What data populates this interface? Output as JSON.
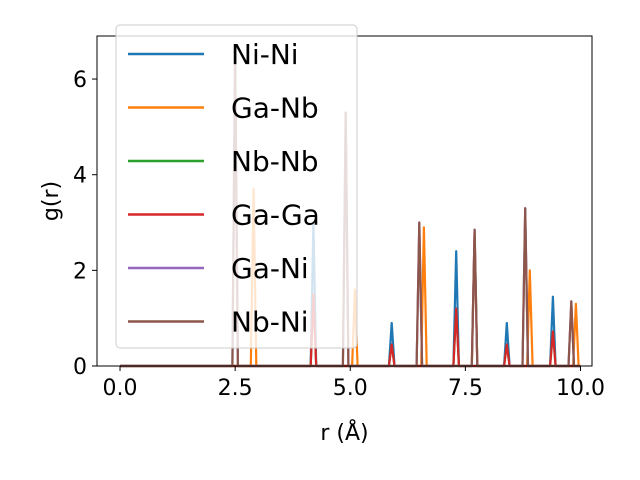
{
  "chart_data": {
    "type": "line",
    "xlabel": "r (Å)",
    "ylabel": "g(r)",
    "xlim": [
      -0.5,
      10.25
    ],
    "ylim": [
      0,
      6.9
    ],
    "xticks": [
      0.0,
      2.5,
      5.0,
      7.5,
      10.0
    ],
    "xtick_labels": [
      "0.0",
      "2.5",
      "5.0",
      "7.5",
      "10.0"
    ],
    "yticks": [
      0,
      2,
      4,
      6
    ],
    "ytick_labels": [
      "0",
      "2",
      "4",
      "6"
    ],
    "grid": false,
    "legend_position": "top-left",
    "peak_width": 0.06,
    "series": [
      {
        "name": "Ni-Ni",
        "color": "#1f77b4",
        "peaks": [
          [
            4.2,
            3.0
          ],
          [
            5.9,
            0.9
          ],
          [
            7.3,
            2.4
          ],
          [
            8.4,
            0.9
          ],
          [
            9.4,
            1.45
          ]
        ]
      },
      {
        "name": "Ga-Nb",
        "color": "#ff7f0e",
        "peaks": [
          [
            2.9,
            3.7
          ],
          [
            5.1,
            1.6
          ],
          [
            6.6,
            2.9
          ],
          [
            7.7,
            2.8
          ],
          [
            8.9,
            2.0
          ],
          [
            9.9,
            1.3
          ]
        ]
      },
      {
        "name": "Nb-Nb",
        "color": "#2ca02c",
        "peaks": [
          [
            4.2,
            1.5
          ],
          [
            5.9,
            0.45
          ],
          [
            7.3,
            1.2
          ],
          [
            8.4,
            0.45
          ],
          [
            9.4,
            0.72
          ]
        ]
      },
      {
        "name": "Ga-Ga",
        "color": "#d62728",
        "peaks": [
          [
            4.2,
            1.5
          ],
          [
            5.9,
            0.45
          ],
          [
            7.3,
            1.2
          ],
          [
            8.4,
            0.45
          ],
          [
            9.4,
            0.72
          ]
        ]
      },
      {
        "name": "Ga-Ni",
        "color": "#9467bd",
        "peaks": [
          [
            2.5,
            6.5
          ],
          [
            4.9,
            5.3
          ],
          [
            6.5,
            3.0
          ],
          [
            7.7,
            2.85
          ],
          [
            8.8,
            3.3
          ],
          [
            9.8,
            1.35
          ]
        ]
      },
      {
        "name": "Nb-Ni",
        "color": "#8c564b",
        "peaks": [
          [
            2.5,
            6.5
          ],
          [
            4.9,
            5.3
          ],
          [
            6.5,
            3.0
          ],
          [
            7.7,
            2.85
          ],
          [
            8.8,
            3.3
          ],
          [
            9.8,
            1.35
          ]
        ]
      }
    ]
  }
}
